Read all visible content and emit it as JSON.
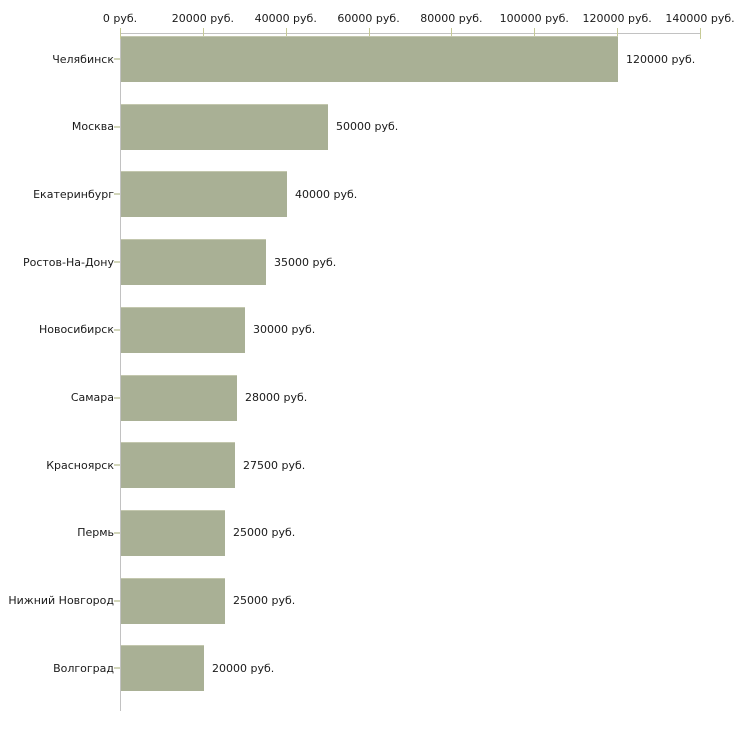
{
  "chart_data": {
    "type": "bar",
    "orientation": "horizontal",
    "title": "",
    "xlabel": "",
    "ylabel": "",
    "unit": "руб.",
    "xlim": [
      0,
      140000
    ],
    "grid": false,
    "legend": null,
    "categories": [
      "Челябинск",
      "Москва",
      "Екатеринбург",
      "Ростов-На-Дону",
      "Новосибирск",
      "Самара",
      "Красноярск",
      "Пермь",
      "Нижний Новгород",
      "Волгоград"
    ],
    "values": [
      120000,
      50000,
      40000,
      35000,
      30000,
      28000,
      27500,
      25000,
      25000,
      20000
    ],
    "value_labels": [
      "120000 руб.",
      "50000 руб.",
      "40000 руб.",
      "35000 руб.",
      "30000 руб.",
      "28000 руб.",
      "27500 руб.",
      "25000 руб.",
      "25000 руб.",
      "20000 руб."
    ],
    "x_ticks": [
      0,
      20000,
      40000,
      60000,
      80000,
      100000,
      120000,
      140000
    ],
    "x_tick_labels": [
      "0 руб.",
      "20000 руб.",
      "40000 руб.",
      "60000 руб.",
      "80000 руб.",
      "100000 руб.",
      "120000 руб.",
      "140000 руб."
    ],
    "colors": {
      "bar_fill": "#A9B095",
      "bar_top_edge": "#C3C7AE",
      "axis_line": "#C2C2C2",
      "x_tick_mark": "#C6CA96",
      "category_tick_mark": "#D2D6BA",
      "text": "#1A1A1A",
      "background": "#FFFFFF"
    }
  }
}
